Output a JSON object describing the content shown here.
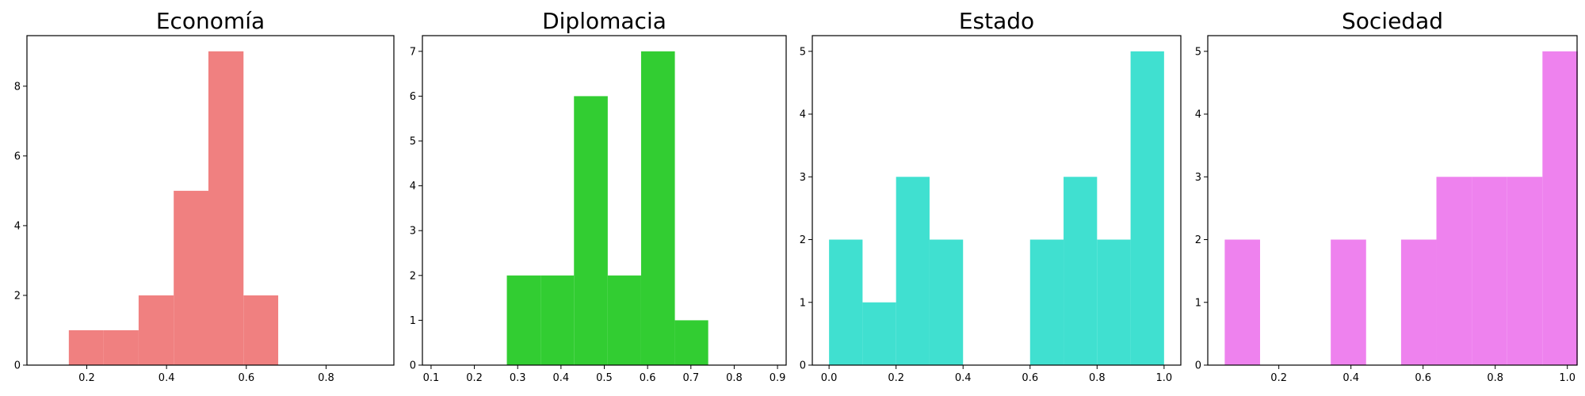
{
  "chart_data": [
    {
      "type": "bar",
      "title": "Economía",
      "color": "#f08080",
      "xlim": [
        0.05,
        0.97
      ],
      "ylim": [
        0,
        9.45
      ],
      "xticks": [
        0.2,
        0.4,
        0.6,
        0.8
      ],
      "yticks": [
        0,
        2,
        4,
        6,
        8
      ],
      "bins": [
        {
          "x0": 0.155,
          "x1": 0.242,
          "count": 1
        },
        {
          "x0": 0.242,
          "x1": 0.33,
          "count": 1
        },
        {
          "x0": 0.33,
          "x1": 0.418,
          "count": 2
        },
        {
          "x0": 0.418,
          "x1": 0.505,
          "count": 5
        },
        {
          "x0": 0.505,
          "x1": 0.593,
          "count": 9
        },
        {
          "x0": 0.593,
          "x1": 0.68,
          "count": 2
        }
      ]
    },
    {
      "type": "bar",
      "title": "Diplomacia",
      "color": "#32cd32",
      "xlim": [
        0.08,
        0.92
      ],
      "ylim": [
        0,
        7.35
      ],
      "xticks": [
        0.1,
        0.2,
        0.3,
        0.4,
        0.5,
        0.6,
        0.7,
        0.8,
        0.9
      ],
      "yticks": [
        0,
        1,
        2,
        3,
        4,
        5,
        6,
        7
      ],
      "bins": [
        {
          "x0": 0.275,
          "x1": 0.353,
          "count": 2
        },
        {
          "x0": 0.353,
          "x1": 0.43,
          "count": 2
        },
        {
          "x0": 0.43,
          "x1": 0.508,
          "count": 6
        },
        {
          "x0": 0.508,
          "x1": 0.585,
          "count": 2
        },
        {
          "x0": 0.585,
          "x1": 0.663,
          "count": 7
        },
        {
          "x0": 0.663,
          "x1": 0.74,
          "count": 1
        }
      ]
    },
    {
      "type": "bar",
      "title": "Estado",
      "color": "#40e0d0",
      "xlim": [
        -0.05,
        1.05
      ],
      "ylim": [
        0,
        5.25
      ],
      "xticks": [
        0.0,
        0.2,
        0.4,
        0.6,
        0.8,
        1.0
      ],
      "yticks": [
        0,
        1,
        2,
        3,
        4,
        5
      ],
      "bins": [
        {
          "x0": 0.0,
          "x1": 0.1,
          "count": 2
        },
        {
          "x0": 0.1,
          "x1": 0.2,
          "count": 1
        },
        {
          "x0": 0.2,
          "x1": 0.3,
          "count": 3
        },
        {
          "x0": 0.3,
          "x1": 0.4,
          "count": 2
        },
        {
          "x0": 0.4,
          "x1": 0.5,
          "count": 0
        },
        {
          "x0": 0.5,
          "x1": 0.6,
          "count": 0
        },
        {
          "x0": 0.6,
          "x1": 0.7,
          "count": 2
        },
        {
          "x0": 0.7,
          "x1": 0.8,
          "count": 3
        },
        {
          "x0": 0.8,
          "x1": 0.9,
          "count": 2
        },
        {
          "x0": 0.9,
          "x1": 1.0,
          "count": 5
        }
      ]
    },
    {
      "type": "bar",
      "title": "Sociedad",
      "color": "#ee82ee",
      "xlim": [
        0.003,
        1.027
      ],
      "ylim": [
        0,
        5.25
      ],
      "xticks": [
        0.2,
        0.4,
        0.6,
        0.8,
        1.0
      ],
      "yticks": [
        0,
        1,
        2,
        3,
        4,
        5
      ],
      "bins": [
        {
          "x0": 0.05,
          "x1": 0.148,
          "count": 2
        },
        {
          "x0": 0.148,
          "x1": 0.246,
          "count": 0
        },
        {
          "x0": 0.246,
          "x1": 0.344,
          "count": 0
        },
        {
          "x0": 0.344,
          "x1": 0.442,
          "count": 2
        },
        {
          "x0": 0.442,
          "x1": 0.539,
          "count": 0
        },
        {
          "x0": 0.539,
          "x1": 0.637,
          "count": 2
        },
        {
          "x0": 0.637,
          "x1": 0.735,
          "count": 3
        },
        {
          "x0": 0.735,
          "x1": 0.833,
          "count": 3
        },
        {
          "x0": 0.833,
          "x1": 0.931,
          "count": 3
        },
        {
          "x0": 0.931,
          "x1": 1.029,
          "count": 5
        }
      ]
    }
  ]
}
